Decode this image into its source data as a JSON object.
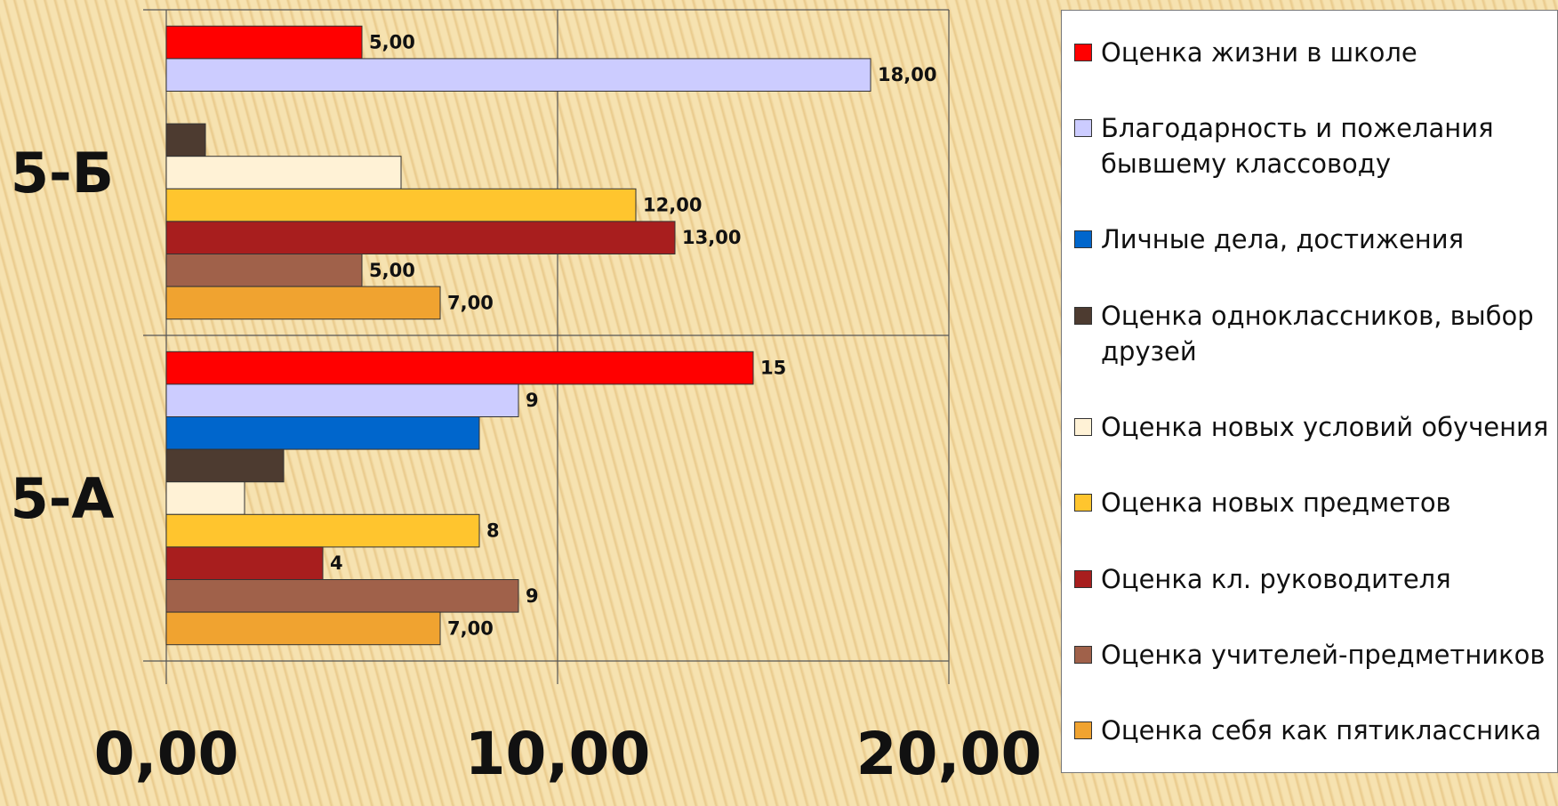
{
  "chart_data": {
    "type": "hbar",
    "categories": [
      "5-Б",
      "5-А"
    ],
    "series": [
      {
        "name": "Оценка жизни в школе",
        "color": "#ff0000",
        "values": [
          5,
          15
        ],
        "value_labels": [
          "5,00",
          "15"
        ]
      },
      {
        "name": "Благодарность и пожелания бывшему классоводу",
        "color": "#ccccff",
        "values": [
          18,
          9
        ],
        "value_labels": [
          "18,00",
          "9"
        ]
      },
      {
        "name": "Личные дела, достижения",
        "color": "#0066cc",
        "values": [
          null,
          8
        ]
      },
      {
        "name": "Оценка одноклассников, выбор друзей",
        "color": "#4d3b30",
        "values": [
          1,
          3
        ]
      },
      {
        "name": "Оценка новых условий обучения",
        "color": "#fff2d6",
        "values": [
          6,
          2
        ]
      },
      {
        "name": "Оценка новых предметов",
        "color": "#ffc52e",
        "values": [
          12,
          8
        ],
        "value_labels": [
          "12,00",
          "8"
        ]
      },
      {
        "name": "Оценка кл. руководителя",
        "color": "#a81e1e",
        "values": [
          13,
          4
        ],
        "value_labels": [
          "13,00",
          "4"
        ]
      },
      {
        "name": "Оценка учителей-предметников",
        "color": "#a0614a",
        "values": [
          5,
          9
        ],
        "value_labels": [
          "5,00",
          "9"
        ]
      },
      {
        "name": "Оценка себя как пятиклассника",
        "color": "#f0a330",
        "values": [
          7,
          7
        ],
        "value_labels": [
          "7,00",
          "7,00"
        ]
      }
    ],
    "xlim": [
      0,
      20
    ],
    "xticks": [
      {
        "value": 0,
        "label": "0,00"
      },
      {
        "value": 10,
        "label": "10,00"
      },
      {
        "value": 20,
        "label": "20,00"
      }
    ],
    "grid": true
  }
}
